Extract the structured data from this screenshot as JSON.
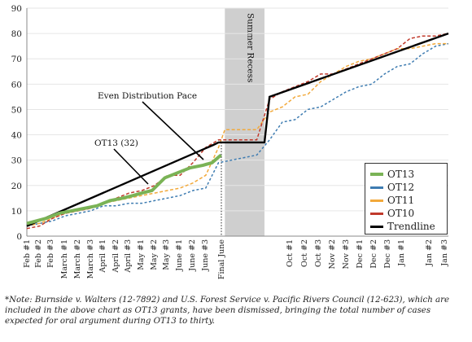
{
  "chart_data": {
    "type": "line",
    "ylim": [
      0,
      90
    ],
    "yticks": [
      0,
      10,
      20,
      30,
      40,
      50,
      60,
      70,
      80,
      90
    ],
    "categories": [
      "Feb #1",
      "Feb #2",
      "Feb #3",
      "March #1",
      "March #2",
      "March #3",
      "April #1",
      "April #2",
      "April #3",
      "May #1",
      "May #2",
      "May #3",
      "June #1",
      "June #2",
      "June #3",
      "Final June",
      "Oct #1",
      "Oct #2",
      "Oct #3",
      "Nov #2",
      "Nov #3",
      "Dec #1",
      "Dec #2",
      "Dec #3",
      "Jan #1",
      "Jan #2",
      "Jan #3"
    ],
    "recess_label": "Summer Recess",
    "annotations": {
      "even_pace": "Even Distribution Pace",
      "ot13_label": "OT13 (32)"
    },
    "series": [
      {
        "name": "OT13",
        "color": "#7ab356",
        "points": [
          [
            0,
            5
          ],
          [
            1.5,
            7
          ],
          [
            2.5,
            9
          ],
          [
            3.5,
            10
          ],
          [
            4.5,
            11
          ],
          [
            5.5,
            12
          ],
          [
            6.5,
            14
          ],
          [
            7.5,
            15
          ],
          [
            8.3,
            16
          ],
          [
            9,
            17
          ],
          [
            9.8,
            18
          ],
          [
            10.8,
            23
          ],
          [
            11.8,
            25
          ],
          [
            12.8,
            27
          ],
          [
            13.8,
            28
          ],
          [
            14.5,
            29
          ],
          [
            15.2,
            32
          ]
        ]
      },
      {
        "name": "OT12",
        "color": "#3e7cb1",
        "points": [
          [
            0,
            4
          ],
          [
            1,
            5
          ],
          [
            2,
            6
          ],
          [
            3,
            8
          ],
          [
            4,
            9
          ],
          [
            5,
            10
          ],
          [
            6,
            12
          ],
          [
            7,
            12
          ],
          [
            8,
            13
          ],
          [
            9,
            13
          ],
          [
            10,
            14
          ],
          [
            11,
            15
          ],
          [
            12,
            16
          ],
          [
            13,
            18
          ],
          [
            14,
            19
          ],
          [
            15,
            29
          ],
          [
            16,
            30
          ],
          [
            17,
            31
          ],
          [
            18,
            32
          ],
          [
            19,
            38
          ],
          [
            20,
            45
          ],
          [
            21,
            46
          ],
          [
            22,
            50
          ],
          [
            23,
            51
          ],
          [
            24,
            54
          ],
          [
            25,
            57
          ],
          [
            26,
            59
          ],
          [
            27,
            60
          ],
          [
            28,
            64
          ],
          [
            29,
            67
          ],
          [
            30,
            68
          ],
          [
            31,
            72
          ],
          [
            32,
            75
          ],
          [
            33,
            76
          ]
        ]
      },
      {
        "name": "OT11",
        "color": "#f2a93b",
        "points": [
          [
            0,
            4
          ],
          [
            1,
            5
          ],
          [
            2,
            7
          ],
          [
            3,
            9
          ],
          [
            4,
            10
          ],
          [
            5,
            11
          ],
          [
            6,
            13
          ],
          [
            7,
            14
          ],
          [
            8,
            15
          ],
          [
            9,
            16
          ],
          [
            10,
            17
          ],
          [
            11,
            18
          ],
          [
            12,
            19
          ],
          [
            13,
            21
          ],
          [
            14,
            24
          ],
          [
            15,
            35
          ],
          [
            15.5,
            42
          ],
          [
            16,
            42
          ],
          [
            17,
            42
          ],
          [
            18,
            42
          ],
          [
            19,
            49
          ],
          [
            20,
            51
          ],
          [
            21,
            55
          ],
          [
            22,
            56
          ],
          [
            23,
            61
          ],
          [
            24,
            64
          ],
          [
            25,
            67
          ],
          [
            26,
            69
          ],
          [
            27,
            70
          ],
          [
            28,
            72
          ],
          [
            29,
            74
          ],
          [
            30,
            74
          ],
          [
            31,
            75
          ],
          [
            32,
            76
          ],
          [
            33,
            76
          ]
        ]
      },
      {
        "name": "OT10",
        "color": "#c0392b",
        "points": [
          [
            0,
            3
          ],
          [
            1,
            4
          ],
          [
            2,
            7
          ],
          [
            3,
            9
          ],
          [
            4,
            10
          ],
          [
            5,
            11
          ],
          [
            6,
            13
          ],
          [
            7,
            15
          ],
          [
            8,
            17
          ],
          [
            9,
            18
          ],
          [
            10,
            20
          ],
          [
            11,
            24
          ],
          [
            12,
            24
          ],
          [
            13,
            29
          ],
          [
            14,
            35
          ],
          [
            15,
            38
          ],
          [
            16,
            38
          ],
          [
            17,
            38
          ],
          [
            18,
            38
          ],
          [
            19,
            54
          ],
          [
            20,
            57
          ],
          [
            21,
            59
          ],
          [
            22,
            61
          ],
          [
            23,
            64
          ],
          [
            24,
            64
          ],
          [
            25,
            66
          ],
          [
            26,
            68
          ],
          [
            27,
            70
          ],
          [
            28,
            72
          ],
          [
            29,
            74
          ],
          [
            30,
            78
          ],
          [
            31,
            79
          ],
          [
            32,
            79
          ],
          [
            33,
            80
          ]
        ]
      },
      {
        "name": "Trendline",
        "color": "#000000",
        "points": [
          [
            0,
            4
          ],
          [
            14.6,
            36
          ],
          [
            15,
            37
          ],
          [
            18.6,
            37
          ],
          [
            19,
            55
          ],
          [
            33,
            80
          ]
        ]
      }
    ],
    "note": "*Note: Burnside v. Walters (12-7892) and U.S. Forest Service v. Pacific Rivers Council (12-623), which are included in the above chart as OT13 grants, have been dismissed, bringing the total number of cases expected for oral argument during OT13 to thirty."
  }
}
